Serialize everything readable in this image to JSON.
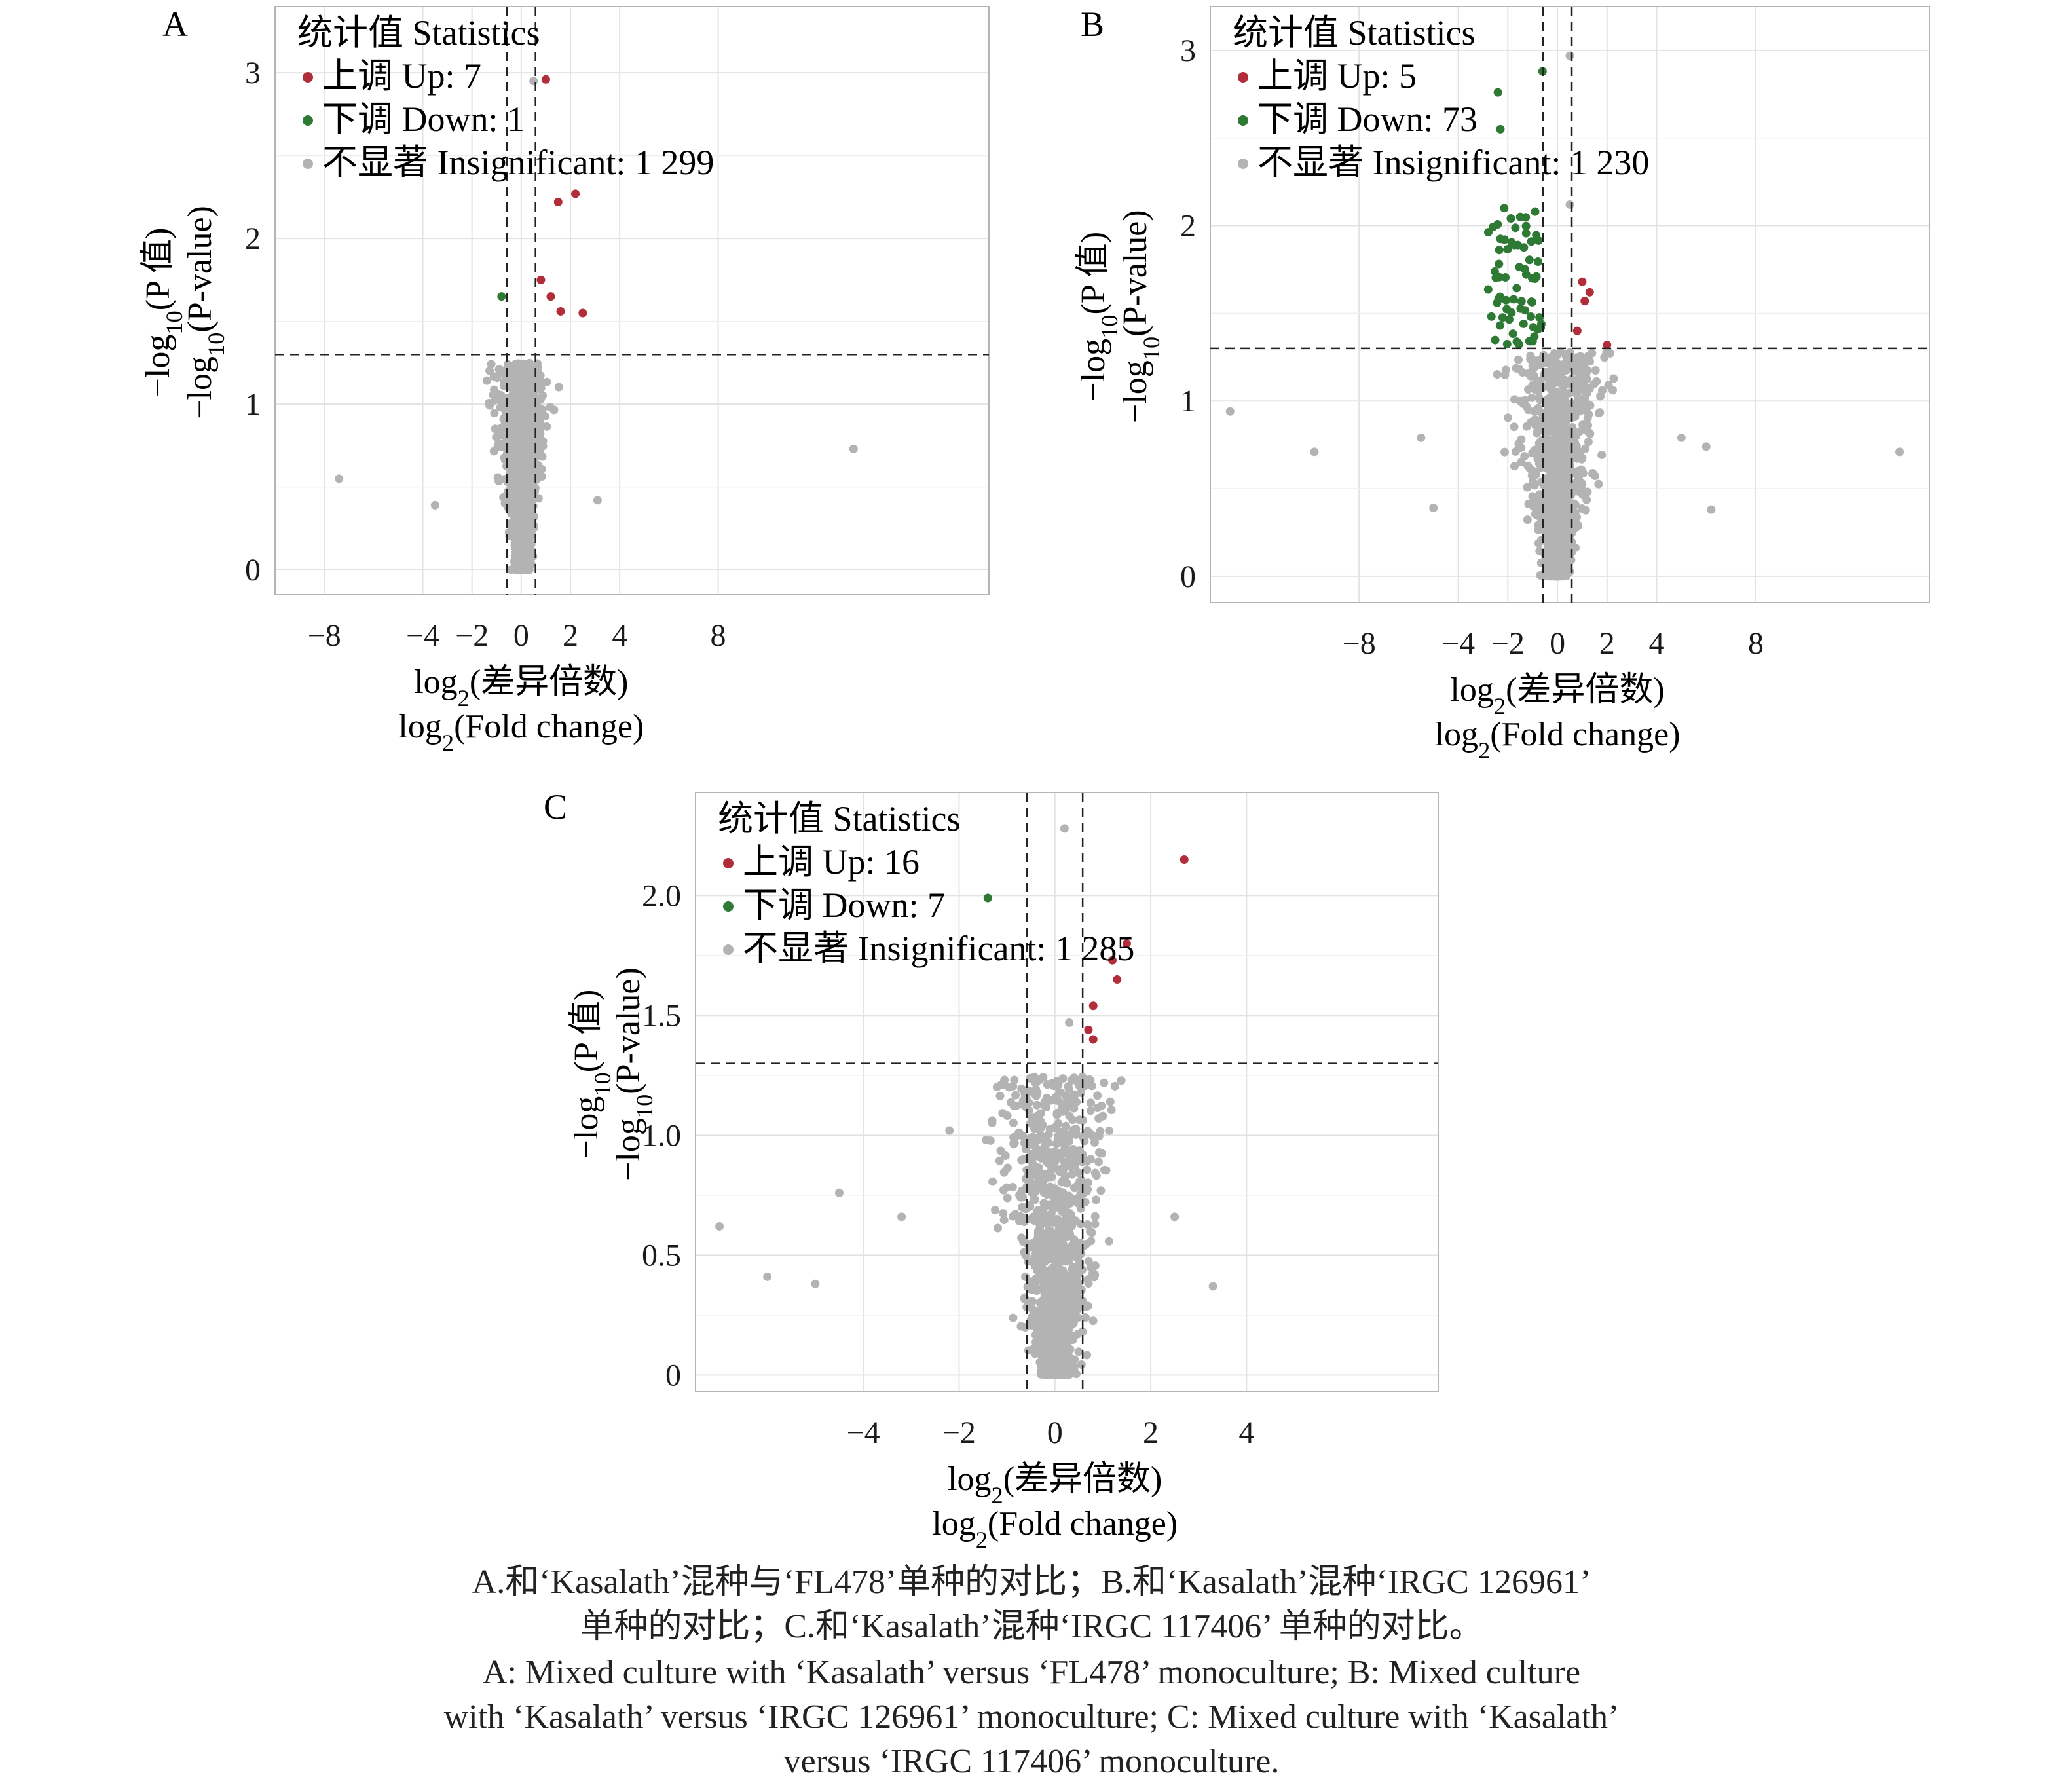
{
  "colors": {
    "up": "#b22d3a",
    "down": "#2e7a35",
    "insignificant": "#b3b3b3",
    "grid": "#e3e3e3",
    "frame": "#b5b5b5"
  },
  "panels": [
    {
      "label": "A",
      "legend": {
        "title": "统计值 Statistics",
        "items": [
          {
            "label": "上调 Up: 7"
          },
          {
            "label": "下调 Down: 1"
          },
          {
            "label": "不显著 Insignificant: 1 299"
          }
        ]
      },
      "ylabel_cn": "−log10(P 值)",
      "ylabel_en": "−log10(P-value)",
      "xlabel_cn": "log2(差异倍数)",
      "xlabel_en": "log2(Fold change)"
    },
    {
      "label": "B",
      "legend": {
        "title": "统计值 Statistics",
        "items": [
          {
            "label": "上调 Up: 5"
          },
          {
            "label": "下调 Down: 73"
          },
          {
            "label": "不显著 Insignificant: 1 230"
          }
        ]
      },
      "ylabel_cn": "−log10(P 值)",
      "ylabel_en": "−log10(P-value)",
      "xlabel_cn": "log2(差异倍数)",
      "xlabel_en": "log2(Fold change)"
    },
    {
      "label": "C",
      "legend": {
        "title": "统计值 Statistics",
        "items": [
          {
            "label": "上调 Up: 16"
          },
          {
            "label": "下调 Down: 7"
          },
          {
            "label": "不显著 Insignificant: 1 285"
          }
        ]
      },
      "ylabel_cn": "−log10(P 值)",
      "ylabel_en": "−log10(P-value)",
      "xlabel_cn": "log2(差异倍数)",
      "xlabel_en": "log2(Fold change)"
    }
  ],
  "chart_data": [
    {
      "type": "scatter",
      "panel": "A",
      "xlim": [
        -10,
        19
      ],
      "ylim": [
        -0.15,
        3.4
      ],
      "xticks": [
        -8,
        -4,
        -2,
        0,
        2,
        4,
        8
      ],
      "yticks": [
        0,
        1,
        2,
        3
      ],
      "xtick_labels": [
        "−8",
        "−4",
        "−2",
        "0",
        "2",
        "4",
        "8"
      ],
      "grid": true,
      "legend_position": "top-left",
      "fc_thresholds": [
        -0.58,
        0.58
      ],
      "p_threshold": 1.3,
      "counts": {
        "up": 7,
        "down": 1,
        "insignificant": 1299
      },
      "up": [
        [
          1.0,
          2.96
        ],
        [
          1.5,
          2.22
        ],
        [
          2.2,
          2.27
        ],
        [
          0.8,
          1.75
        ],
        [
          1.2,
          1.65
        ],
        [
          1.6,
          1.56
        ],
        [
          2.5,
          1.55
        ]
      ],
      "down": [
        [
          -0.8,
          1.65
        ]
      ],
      "insignificant_outliers": [
        [
          -7.4,
          0.55
        ],
        [
          13.5,
          0.73
        ],
        [
          -3.5,
          0.39
        ],
        [
          3.1,
          0.42
        ],
        [
          0.5,
          2.95
        ]
      ],
      "cloud": {
        "x_spread": 0.9,
        "y_max": 1.25
      }
    },
    {
      "type": "scatter",
      "panel": "B",
      "xlim": [
        -14,
        15
      ],
      "ylim": [
        -0.15,
        3.25
      ],
      "xticks": [
        -8,
        -4,
        -2,
        0,
        2,
        4,
        8
      ],
      "yticks": [
        0,
        1,
        2,
        3
      ],
      "xtick_labels": [
        "−8",
        "−4",
        "−2",
        "0",
        "2",
        "4",
        "8"
      ],
      "grid": true,
      "legend_position": "top-left",
      "fc_thresholds": [
        -0.58,
        0.58
      ],
      "p_threshold": 1.3,
      "counts": {
        "up": 5,
        "down": 73,
        "insignificant": 1230
      },
      "up": [
        [
          1.0,
          1.68
        ],
        [
          1.1,
          1.57
        ],
        [
          0.8,
          1.4
        ],
        [
          2.0,
          1.32
        ],
        [
          1.3,
          1.62
        ]
      ],
      "down": [
        [
          -0.6,
          2.88
        ],
        [
          -2.4,
          2.76
        ],
        [
          -2.3,
          2.55
        ],
        [
          -1.5,
          2.05
        ],
        [
          -0.9,
          2.08
        ]
      ],
      "down_cluster": {
        "x_range": [
          -2.8,
          -0.6
        ],
        "y_range": [
          1.32,
          2.1
        ],
        "n": 68
      },
      "insignificant_outliers": [
        [
          -13.2,
          0.94
        ],
        [
          -9.8,
          0.71
        ],
        [
          -5.5,
          0.79
        ],
        [
          -5.0,
          0.39
        ],
        [
          5.0,
          0.79
        ],
        [
          6.0,
          0.74
        ],
        [
          6.2,
          0.38
        ],
        [
          13.8,
          0.71
        ],
        [
          0.5,
          2.97
        ],
        [
          0.5,
          2.12
        ]
      ],
      "cloud": {
        "x_spread": 1.5,
        "y_max": 1.28
      }
    },
    {
      "type": "scatter",
      "panel": "C",
      "xlim": [
        -7.5,
        8
      ],
      "ylim": [
        -0.07,
        2.43
      ],
      "xticks": [
        -4,
        -2,
        0,
        2,
        4
      ],
      "yticks": [
        0,
        0.5,
        1.0,
        1.5,
        2.0
      ],
      "xtick_labels": [
        "−4",
        "−2",
        "0",
        "2",
        "4"
      ],
      "ytick_labels": [
        "0",
        "0.5",
        "1.0",
        "1.5",
        "2.0"
      ],
      "grid": true,
      "legend_position": "top-left",
      "fc_thresholds": [
        -0.58,
        0.58
      ],
      "p_threshold": 1.3,
      "counts": {
        "up": 16,
        "down": 7,
        "insignificant": 1285
      },
      "up": [
        [
          2.7,
          2.15
        ],
        [
          1.5,
          1.8
        ],
        [
          1.2,
          1.73
        ],
        [
          1.3,
          1.65
        ],
        [
          0.8,
          1.54
        ],
        [
          0.7,
          1.44
        ],
        [
          0.8,
          1.4
        ]
      ],
      "down": [
        [
          -1.4,
          1.99
        ]
      ],
      "insignificant_outliers": [
        [
          -7.0,
          0.62
        ],
        [
          -6.0,
          0.41
        ],
        [
          -5.0,
          0.38
        ],
        [
          -4.5,
          0.76
        ],
        [
          -3.2,
          0.66
        ],
        [
          -2.2,
          1.02
        ],
        [
          0.2,
          2.28
        ],
        [
          3.3,
          0.37
        ],
        [
          2.5,
          0.66
        ],
        [
          0.3,
          1.47
        ]
      ],
      "cloud": {
        "x_spread": 1.1,
        "y_max": 1.25
      }
    }
  ],
  "caption_cn": [
    "A.和‘Kasalath’混种与‘FL478’单种的对比；B.和‘Kasalath’混种‘IRGC 126961’",
    "单种的对比；C.和‘Kasalath’混种‘IRGC 117406’ 单种的对比。"
  ],
  "caption_en": [
    "A: Mixed culture with ‘Kasalath’ versus ‘FL478’ monoculture; B: Mixed culture",
    "with ‘Kasalath’ versus ‘IRGC 126961’ monoculture; C: Mixed culture with ‘Kasalath’",
    "versus ‘IRGC 117406’ monoculture."
  ]
}
